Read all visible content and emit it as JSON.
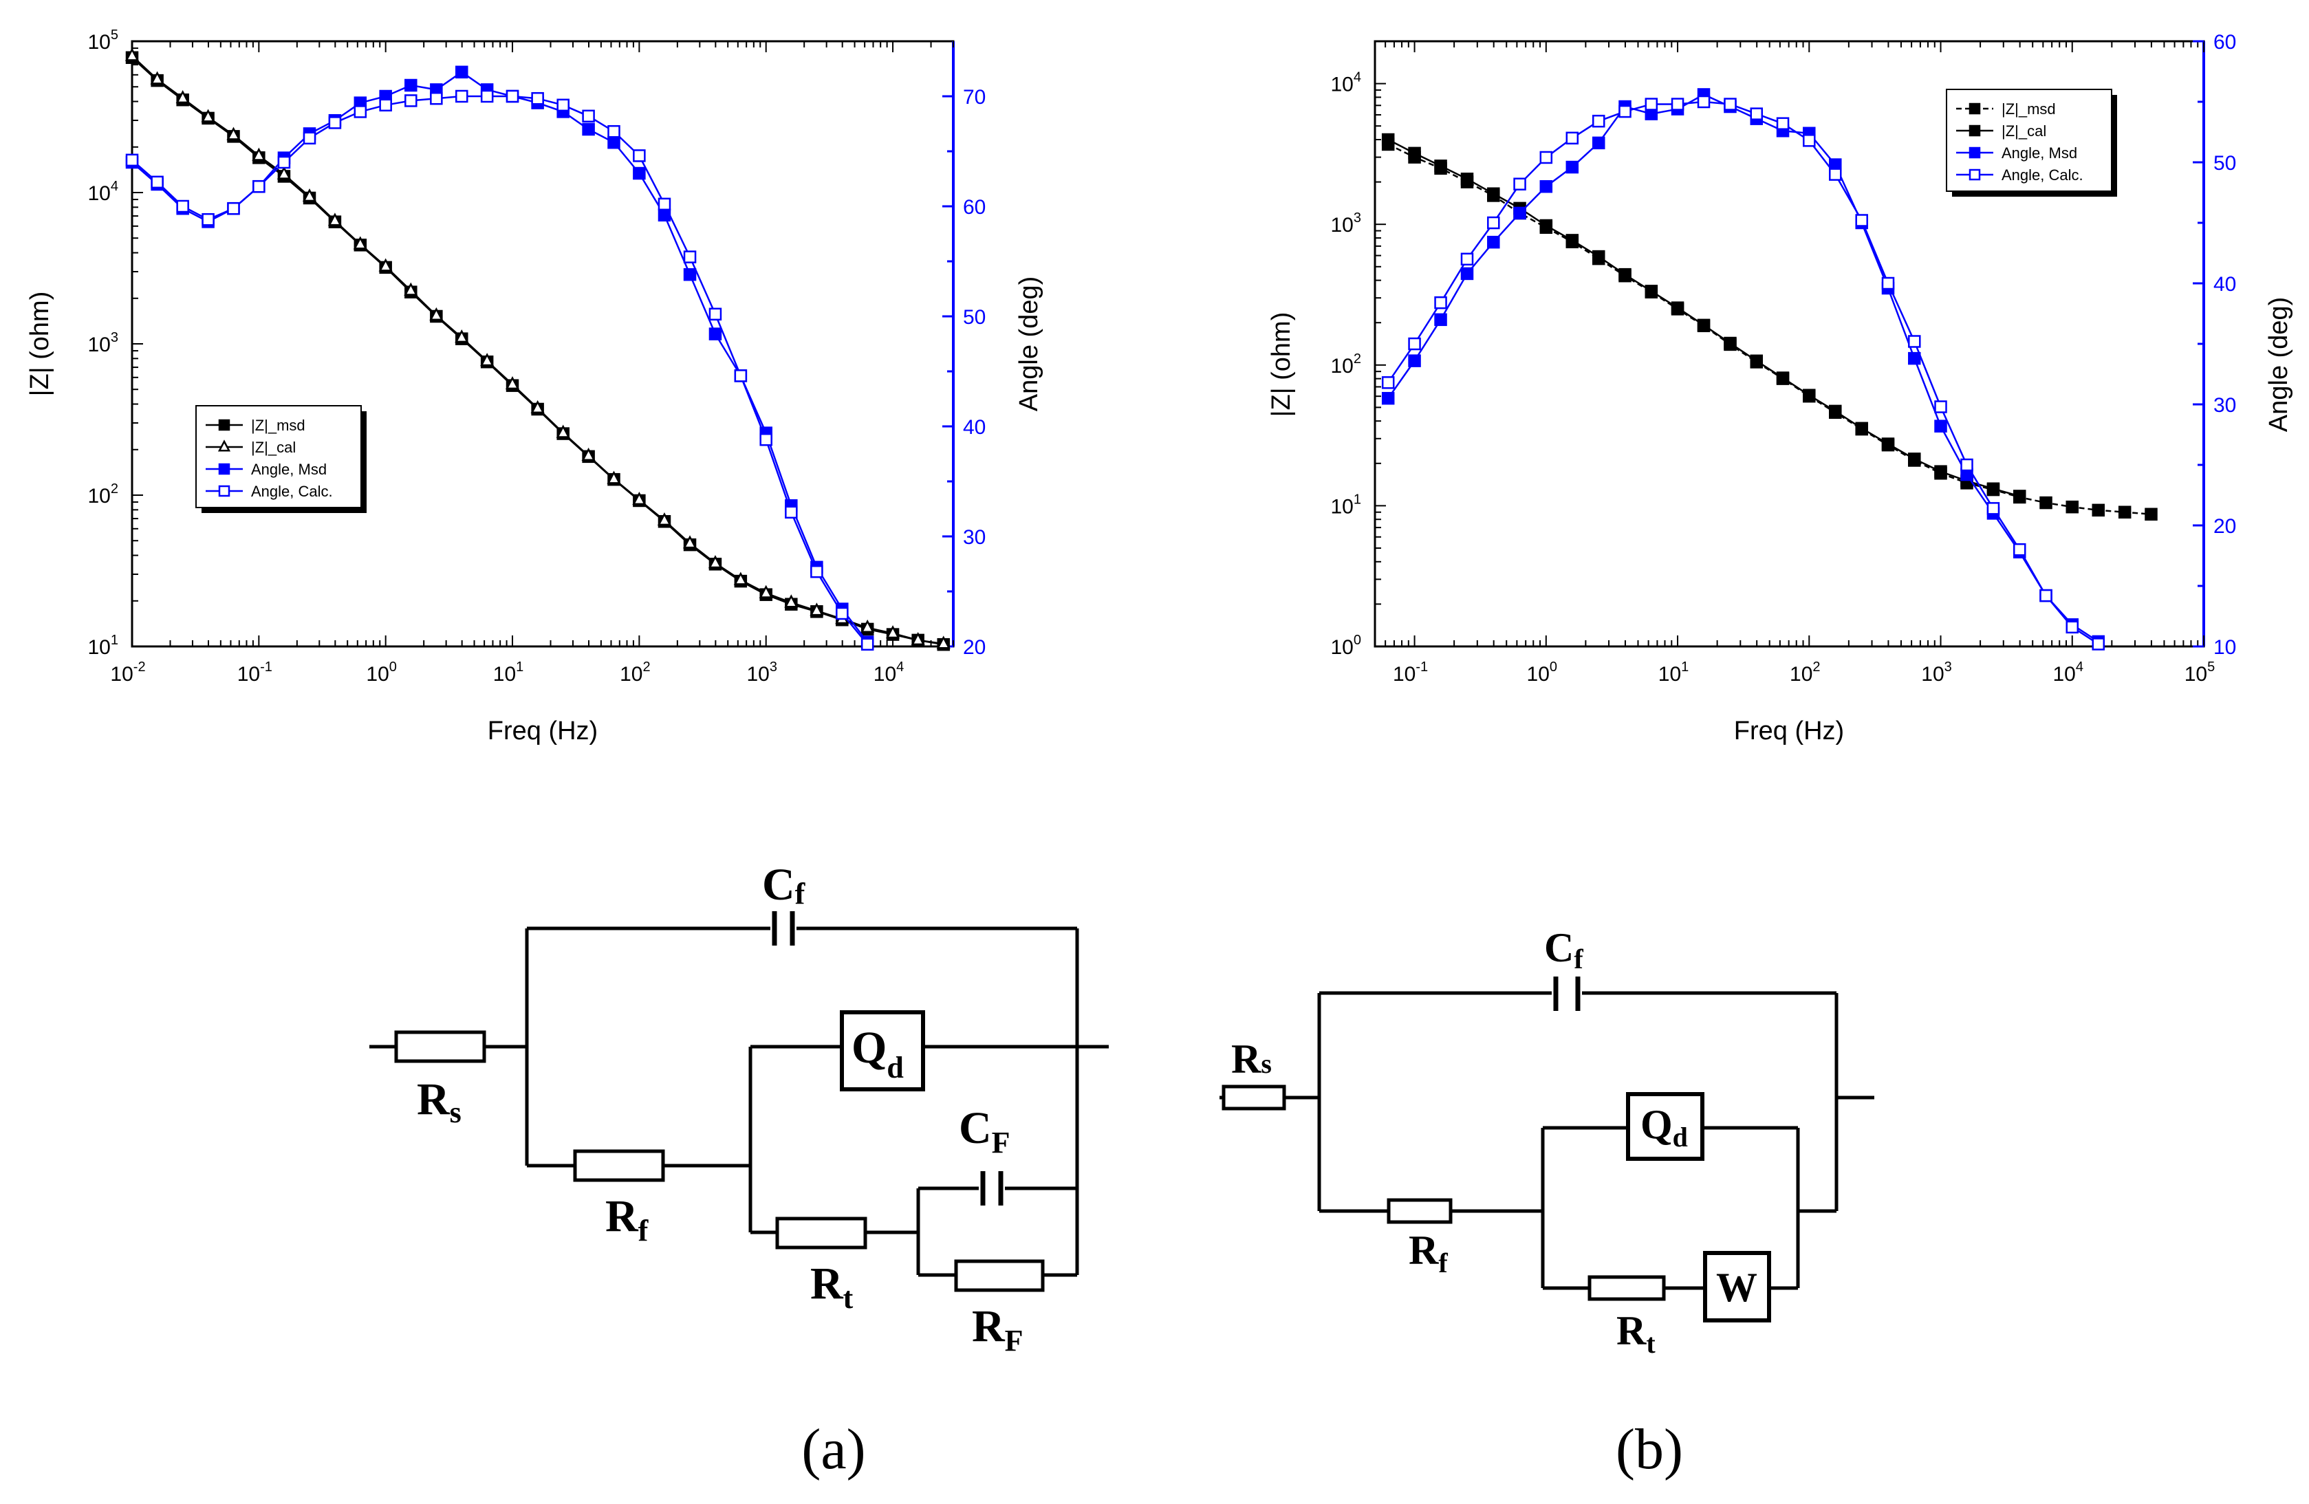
{
  "colors": {
    "black": "#000000",
    "blue": "#0000ff"
  },
  "chart_data": [
    {
      "type": "line",
      "panel": "a",
      "xlabel": "Freq (Hz)",
      "ylabel": "|Z| (ohm)",
      "y2label": "Angle (deg)",
      "x_scale": "log",
      "y_scale": "log",
      "xlim": [
        0.01,
        30000
      ],
      "ylim": [
        10,
        100000
      ],
      "y2lim": [
        20,
        75
      ],
      "x_ticks": [
        {
          "value": 0.01,
          "base": "10",
          "exp": "-2"
        },
        {
          "value": 0.1,
          "base": "10",
          "exp": "-1"
        },
        {
          "value": 1,
          "base": "10",
          "exp": "0"
        },
        {
          "value": 10,
          "base": "10",
          "exp": "1"
        },
        {
          "value": 100,
          "base": "10",
          "exp": "2"
        },
        {
          "value": 1000,
          "base": "10",
          "exp": "3"
        },
        {
          "value": 10000,
          "base": "10",
          "exp": "4"
        }
      ],
      "y_ticks": [
        {
          "value": 10,
          "base": "10",
          "exp": "1"
        },
        {
          "value": 100,
          "base": "10",
          "exp": "2"
        },
        {
          "value": 1000,
          "base": "10",
          "exp": "3"
        },
        {
          "value": 10000,
          "base": "10",
          "exp": "4"
        },
        {
          "value": 100000,
          "base": "10",
          "exp": "5"
        }
      ],
      "y2_ticks": [
        "20",
        "30",
        "40",
        "50",
        "60",
        "70"
      ],
      "legend_position": "center-left",
      "series": [
        {
          "name": "|Z|_msd",
          "axis": "left",
          "color": "#000000",
          "marker": "filled-square",
          "dashed": false,
          "x": [
            0.01,
            0.0158,
            0.0251,
            0.0398,
            0.0631,
            0.1,
            0.158,
            0.251,
            0.398,
            0.631,
            1,
            1.58,
            2.51,
            3.98,
            6.31,
            10,
            15.8,
            25.1,
            39.8,
            63.1,
            100,
            158,
            251,
            398,
            631,
            1000,
            1580,
            2510,
            3980,
            6310,
            10000,
            15800,
            25100
          ],
          "y": [
            78000,
            55000,
            41000,
            31000,
            23500,
            17000,
            12800,
            9200,
            6400,
            4500,
            3200,
            2200,
            1520,
            1080,
            760,
            530,
            370,
            255,
            180,
            127,
            92,
            67,
            47,
            35,
            27,
            22,
            19,
            17,
            15,
            13,
            12,
            11,
            10.3
          ]
        },
        {
          "name": "|Z|_cal",
          "axis": "left",
          "color": "#000000",
          "marker": "open-triangle",
          "dashed": false,
          "x": [
            0.01,
            0.0158,
            0.0251,
            0.0398,
            0.0631,
            0.1,
            0.158,
            0.251,
            0.398,
            0.631,
            1,
            1.58,
            2.51,
            3.98,
            6.31,
            10,
            15.8,
            25.1,
            39.8,
            63.1,
            100,
            158,
            251,
            398,
            631,
            1000,
            1580,
            2510,
            3980,
            6310,
            10000,
            15800,
            25100
          ],
          "y": [
            80000,
            56000,
            42000,
            31500,
            24000,
            17500,
            13200,
            9400,
            6500,
            4550,
            3250,
            2250,
            1540,
            1100,
            770,
            540,
            375,
            258,
            182,
            128,
            93,
            68,
            48,
            35.5,
            27.5,
            22.5,
            19.5,
            17.2,
            15.2,
            13.3,
            12.2,
            11,
            10.4
          ]
        },
        {
          "name": "Angle, Msd",
          "axis": "right",
          "color": "#0000ff",
          "marker": "filled-square",
          "dashed": false,
          "x": [
            0.01,
            0.0158,
            0.0251,
            0.0398,
            0.0631,
            0.1,
            0.158,
            0.251,
            0.398,
            0.631,
            1,
            1.58,
            2.51,
            3.98,
            6.31,
            10,
            15.8,
            25.1,
            39.8,
            63.1,
            100,
            158,
            251,
            398,
            631,
            1000,
            1580,
            2510,
            3980,
            6310
          ],
          "y": [
            64,
            62,
            59.8,
            58.6,
            59.8,
            61.8,
            64.4,
            66.6,
            67.8,
            69.4,
            70,
            71,
            70.6,
            72.2,
            70.6,
            70,
            69.4,
            68.6,
            67,
            65.8,
            63,
            59.2,
            53.8,
            48.4,
            44.6,
            39.4,
            32.8,
            27.2,
            23.4,
            20.4
          ]
        },
        {
          "name": "Angle, Calc.",
          "axis": "right",
          "color": "#0000ff",
          "marker": "open-square",
          "dashed": false,
          "x": [
            0.01,
            0.0158,
            0.0251,
            0.0398,
            0.0631,
            0.1,
            0.158,
            0.251,
            0.398,
            0.631,
            1,
            1.58,
            2.51,
            3.98,
            6.31,
            10,
            15.8,
            25.1,
            39.8,
            63.1,
            100,
            158,
            251,
            398,
            631,
            1000,
            1580,
            2510,
            3980,
            6310
          ],
          "y": [
            64.2,
            62.2,
            60,
            58.8,
            59.8,
            61.8,
            64,
            66.2,
            67.6,
            68.6,
            69.2,
            69.6,
            69.8,
            70,
            70,
            70,
            69.8,
            69.2,
            68.2,
            66.8,
            64.6,
            60.2,
            55.4,
            50.2,
            44.6,
            38.8,
            32.2,
            26.8,
            23,
            20.2
          ]
        }
      ]
    },
    {
      "type": "line",
      "panel": "b",
      "xlabel": "Freq (Hz)",
      "ylabel": "|Z| (ohm)",
      "y2label": "Angle (deg)",
      "x_scale": "log",
      "y_scale": "log",
      "xlim": [
        0.05,
        100000
      ],
      "ylim": [
        1,
        20000
      ],
      "y2lim": [
        10,
        60
      ],
      "x_ticks": [
        {
          "value": 0.1,
          "base": "10",
          "exp": "-1"
        },
        {
          "value": 1,
          "base": "10",
          "exp": "0"
        },
        {
          "value": 10,
          "base": "10",
          "exp": "1"
        },
        {
          "value": 100,
          "base": "10",
          "exp": "2"
        },
        {
          "value": 1000,
          "base": "10",
          "exp": "3"
        },
        {
          "value": 10000,
          "base": "10",
          "exp": "4"
        },
        {
          "value": 100000,
          "base": "10",
          "exp": "5"
        }
      ],
      "y_ticks": [
        {
          "value": 1,
          "base": "10",
          "exp": "0"
        },
        {
          "value": 10,
          "base": "10",
          "exp": "1"
        },
        {
          "value": 100,
          "base": "10",
          "exp": "2"
        },
        {
          "value": 1000,
          "base": "10",
          "exp": "3"
        },
        {
          "value": 10000,
          "base": "10",
          "exp": "4"
        }
      ],
      "y2_ticks": [
        "10",
        "20",
        "30",
        "40",
        "50",
        "60"
      ],
      "legend_position": "top-right",
      "series": [
        {
          "name": "|Z|_msd",
          "axis": "left",
          "color": "#000000",
          "marker": "filled-square",
          "dashed": true,
          "x": [
            0.063,
            0.1,
            0.158,
            0.251,
            0.398,
            0.631,
            1,
            1.58,
            2.51,
            3.98,
            6.31,
            10,
            15.8,
            25.1,
            39.8,
            63.1,
            100,
            158,
            251,
            398,
            631,
            1000,
            1580,
            2510,
            3980,
            6310,
            10000,
            15800,
            25100,
            39800
          ],
          "y": [
            3700,
            3000,
            2500,
            2000,
            1600,
            1200,
            950,
            750,
            570,
            430,
            330,
            250,
            190,
            140,
            105,
            80,
            60,
            46,
            35,
            27,
            21,
            17,
            14.5,
            13,
            11.5,
            10.5,
            9.8,
            9.3,
            9,
            8.7
          ]
        },
        {
          "name": "|Z|_cal",
          "axis": "left",
          "color": "#000000",
          "marker": "filled-square",
          "dashed": false,
          "x": [
            0.063,
            0.1,
            0.158,
            0.251,
            0.398,
            0.631,
            1,
            1.58,
            2.51,
            3.98,
            6.31,
            10,
            15.8,
            25.1,
            39.8,
            63.1,
            100,
            158,
            251,
            398,
            631,
            1000,
            1580,
            2510,
            3980
          ],
          "y": [
            4000,
            3200,
            2600,
            2100,
            1650,
            1300,
            980,
            770,
            590,
            440,
            335,
            255,
            192,
            143,
            107,
            81,
            61,
            47,
            35.5,
            27.5,
            21.5,
            17.5,
            15,
            13.2,
            11.7
          ]
        },
        {
          "name": "Angle, Msd",
          "axis": "right",
          "color": "#0000ff",
          "marker": "filled-square",
          "dashed": false,
          "x": [
            0.063,
            0.1,
            0.158,
            0.251,
            0.398,
            0.631,
            1,
            1.58,
            2.51,
            3.98,
            6.31,
            10,
            15.8,
            25.1,
            39.8,
            63.1,
            100,
            158,
            251,
            398,
            631,
            1000,
            1580,
            2510,
            3980,
            6310,
            10000,
            15800
          ],
          "y": [
            30.5,
            33.6,
            37,
            40.8,
            43.4,
            45.8,
            48,
            49.6,
            51.6,
            54.6,
            54,
            54.4,
            55.6,
            54.6,
            53.6,
            52.6,
            52.4,
            49.8,
            45,
            39.6,
            33.8,
            28.2,
            24.2,
            21,
            17.8,
            14.2,
            11.8,
            10.4
          ]
        },
        {
          "name": "Angle, Calc.",
          "axis": "right",
          "color": "#0000ff",
          "marker": "open-square",
          "dashed": false,
          "x": [
            0.063,
            0.1,
            0.158,
            0.251,
            0.398,
            0.631,
            1,
            1.58,
            2.51,
            3.98,
            6.31,
            10,
            15.8,
            25.1,
            39.8,
            63.1,
            100,
            158,
            251,
            398,
            631,
            1000,
            1580,
            2510,
            3980,
            6310,
            10000,
            15800
          ],
          "y": [
            31.8,
            35,
            38.4,
            42,
            45,
            48.2,
            50.4,
            52,
            53.4,
            54.2,
            54.8,
            54.8,
            55,
            54.8,
            54,
            53.2,
            51.8,
            49,
            45.2,
            40,
            35.2,
            29.8,
            25,
            21.4,
            18,
            14.2,
            11.6,
            10.2
          ]
        }
      ]
    }
  ],
  "circuit_a": {
    "labels": {
      "cf": {
        "main": "C",
        "sub": "f"
      },
      "rs": {
        "main": "R",
        "sub": "s"
      },
      "qd": {
        "main": "Q",
        "sub": "d"
      },
      "rf": {
        "main": "R",
        "sub": "f"
      },
      "cF": {
        "main": "C",
        "sub": "F"
      },
      "rt": {
        "main": "R",
        "sub": "t"
      },
      "rF": {
        "main": "R",
        "sub": "F"
      }
    },
    "caption": "(a)"
  },
  "circuit_b": {
    "labels": {
      "cf": {
        "main": "C",
        "sub": "f"
      },
      "rs": {
        "main": "R",
        "sub": "s"
      },
      "qd": {
        "main": "Q",
        "sub": "d"
      },
      "rf": {
        "main": "R",
        "sub": "f"
      },
      "rt": {
        "main": "R",
        "sub": "t"
      },
      "w": "W"
    },
    "caption": "(b)"
  }
}
